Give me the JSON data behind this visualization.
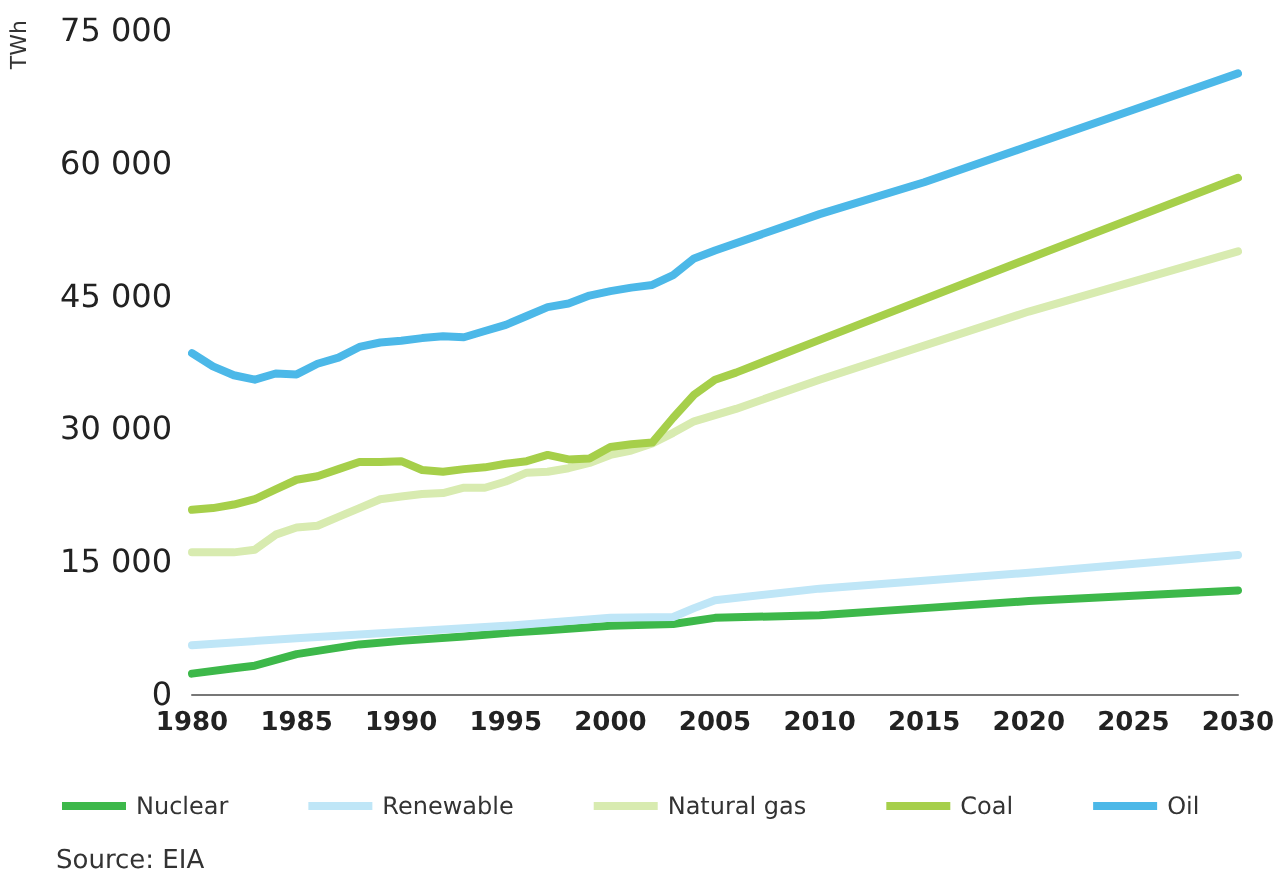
{
  "chart_data": {
    "type": "line",
    "ylabel": "TWh",
    "xlim": [
      1980,
      2030
    ],
    "xticks": [
      1980,
      1985,
      1990,
      1995,
      2000,
      2005,
      2010,
      2015,
      2020,
      2025,
      2030
    ],
    "ylim": [
      0,
      75000
    ],
    "yticks": [
      {
        "value": 0,
        "label": "0"
      },
      {
        "value": 15000,
        "label": "15 000"
      },
      {
        "value": 30000,
        "label": "30 000"
      },
      {
        "value": 45000,
        "label": "45 000"
      },
      {
        "value": 60000,
        "label": "60 000"
      },
      {
        "value": 75000,
        "label": "75 000"
      }
    ],
    "grid": false,
    "legend": "bottom",
    "marker": "none",
    "line_style": "solid",
    "annotations": [
      "Source: EIA"
    ],
    "series": [
      {
        "name": "Nuclear",
        "color": "#3db84a",
        "x": [
          1980,
          1982,
          1983,
          1985,
          1988,
          1990,
          1993,
          1995,
          1997,
          2000,
          2003,
          2005,
          2010,
          2015,
          2020,
          2030
        ],
        "values": [
          2300,
          2900,
          3200,
          4500,
          5600,
          6000,
          6500,
          6900,
          7200,
          7700,
          7900,
          8600,
          8900,
          9700,
          10500,
          11700
        ]
      },
      {
        "name": "Renewable",
        "color": "#bfe6f7",
        "x": [
          1980,
          1985,
          1990,
          1995,
          2000,
          2003,
          2004,
          2005,
          2010,
          2020,
          2030
        ],
        "values": [
          5500,
          6300,
          7000,
          7700,
          8600,
          8700,
          9700,
          10600,
          11900,
          13700,
          15700
        ]
      },
      {
        "name": "Natural gas",
        "color": "#d8ebb0",
        "x": [
          1980,
          1982,
          1983,
          1984,
          1985,
          1986,
          1987,
          1988,
          1989,
          1990,
          1991,
          1992,
          1993,
          1994,
          1995,
          1996,
          1997,
          1998,
          1999,
          2000,
          2001,
          2002,
          2003,
          2004,
          2005,
          2006,
          2010,
          2020,
          2030
        ],
        "values": [
          16000,
          16000,
          16300,
          18000,
          18800,
          19000,
          20000,
          21000,
          22000,
          22300,
          22600,
          22700,
          23300,
          23300,
          24000,
          25000,
          25100,
          25500,
          26100,
          27000,
          27500,
          28300,
          29500,
          30800,
          31500,
          32200,
          35500,
          43200,
          50000
        ]
      },
      {
        "name": "Coal",
        "color": "#a6cf4a",
        "x": [
          1980,
          1981,
          1982,
          1983,
          1984,
          1985,
          1986,
          1987,
          1988,
          1989,
          1990,
          1991,
          1992,
          1993,
          1994,
          1995,
          1996,
          1997,
          1998,
          1999,
          2000,
          2001,
          2002,
          2003,
          2004,
          2005,
          2006,
          2010,
          2020,
          2030
        ],
        "values": [
          20800,
          21000,
          21400,
          22000,
          23100,
          24200,
          24600,
          25400,
          26200,
          26200,
          26300,
          25300,
          25100,
          25400,
          25600,
          26000,
          26300,
          27000,
          26500,
          26600,
          27900,
          28200,
          28400,
          31200,
          33800,
          35500,
          36300,
          40000,
          49200,
          58300
        ]
      },
      {
        "name": "Oil",
        "color": "#4cb8e8",
        "x": [
          1980,
          1981,
          1982,
          1983,
          1984,
          1985,
          1986,
          1987,
          1988,
          1989,
          1990,
          1991,
          1992,
          1993,
          1994,
          1995,
          1996,
          1997,
          1998,
          1999,
          2000,
          2001,
          2002,
          2003,
          2004,
          2005,
          2010,
          2015,
          2020,
          2025,
          2030
        ],
        "values": [
          38500,
          37000,
          36000,
          35500,
          36200,
          36100,
          37300,
          38000,
          39200,
          39700,
          39900,
          40200,
          40400,
          40300,
          41000,
          41700,
          42700,
          43700,
          44100,
          45000,
          45500,
          45900,
          46200,
          47300,
          49200,
          50100,
          54200,
          57800,
          61900,
          66000,
          70100
        ]
      }
    ]
  }
}
